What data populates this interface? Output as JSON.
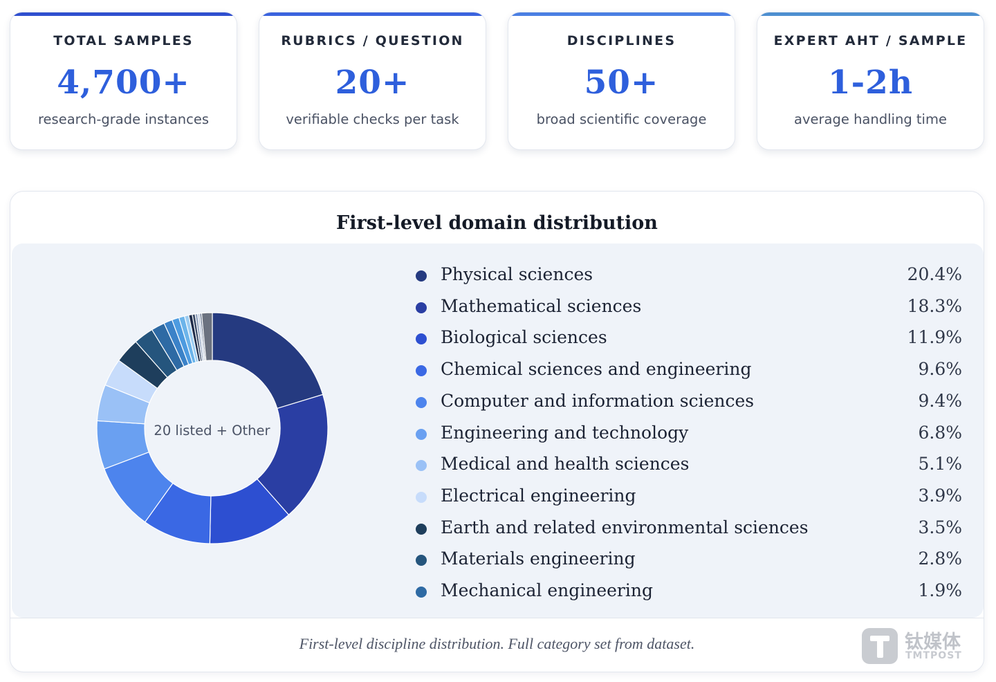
{
  "stats": [
    {
      "label": "TOTAL SAMPLES",
      "value": "4,700+",
      "sub": "research-grade instances",
      "bar_color": "#2f4fcf"
    },
    {
      "label": "RUBRICS / QUESTION",
      "value": "20+",
      "sub": "verifiable checks per task",
      "bar_color": "#3a63de"
    },
    {
      "label": "DISCIPLINES",
      "value": "50+",
      "sub": "broad scientific coverage",
      "bar_color": "#4a7fe3"
    },
    {
      "label": "EXPERT AHT / SAMPLE",
      "value": "1-2h",
      "sub": "average handling time",
      "bar_color": "#4d8fd0"
    }
  ],
  "panel": {
    "title": "First-level domain distribution",
    "center_label": "20 listed + Other",
    "caption": "First-level discipline distribution. Full category set from dataset."
  },
  "chart_data": {
    "type": "pie",
    "title": "First-level domain distribution",
    "center_label": "20 listed + Other",
    "legend_position": "right",
    "slices": [
      {
        "name": "Physical sciences",
        "value": 20.4,
        "label": "20.4%",
        "color": "#253a80"
      },
      {
        "name": "Mathematical sciences",
        "value": 18.3,
        "label": "18.3%",
        "color": "#2a3ea3"
      },
      {
        "name": "Biological sciences",
        "value": 11.9,
        "label": "11.9%",
        "color": "#2d4fd1"
      },
      {
        "name": "Chemical sciences and engineering",
        "value": 9.6,
        "label": "9.6%",
        "color": "#3a68e4"
      },
      {
        "name": "Computer and information sciences",
        "value": 9.4,
        "label": "9.4%",
        "color": "#4d84ed"
      },
      {
        "name": "Engineering and technology",
        "value": 6.8,
        "label": "6.8%",
        "color": "#6aa0f1"
      },
      {
        "name": "Medical and health sciences",
        "value": 5.1,
        "label": "5.1%",
        "color": "#9ac1f6"
      },
      {
        "name": "Electrical engineering",
        "value": 3.9,
        "label": "3.9%",
        "color": "#c7dcfb"
      },
      {
        "name": "Earth and related environmental sciences",
        "value": 3.5,
        "label": "3.5%",
        "color": "#1e3e5c"
      },
      {
        "name": "Materials engineering",
        "value": 2.8,
        "label": "2.8%",
        "color": "#25557d"
      },
      {
        "name": "Mechanical engineering",
        "value": 1.9,
        "label": "1.9%",
        "color": "#2e6aa4"
      },
      {
        "value": 1.2,
        "color": "#3b82c8"
      },
      {
        "value": 1.0,
        "color": "#4d9be0"
      },
      {
        "value": 0.8,
        "color": "#6cb4ea"
      },
      {
        "value": 0.6,
        "color": "#9dcdf2"
      },
      {
        "value": 0.5,
        "color": "#1f2c4a"
      },
      {
        "value": 0.4,
        "color": "#3a4a66"
      },
      {
        "value": 0.35,
        "color": "#8ea0bd"
      },
      {
        "value": 0.3,
        "color": "#b9c7dc"
      },
      {
        "value": 0.25,
        "color": "#5a6a85"
      },
      {
        "value": 1.5,
        "color": "#6b7280"
      }
    ]
  },
  "watermark": {
    "cn": "钛媒体",
    "en": "TMTPOST"
  }
}
